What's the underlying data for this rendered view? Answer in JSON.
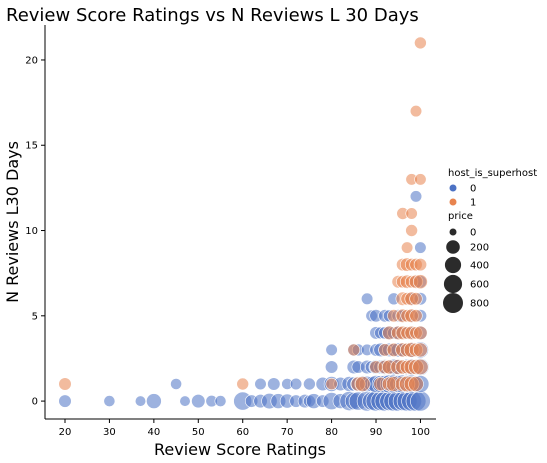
{
  "chart_data": {
    "type": "scatter",
    "title": "Review Score Ratings vs N Reviews L 30 Days",
    "xlabel": "Review Score Ratings",
    "ylabel": "N Reviews L30 Days",
    "xlim": [
      15.5,
      103.5
    ],
    "ylim": [
      -1.05,
      22.05
    ],
    "xticks": [
      20,
      30,
      40,
      50,
      60,
      70,
      80,
      90,
      100
    ],
    "yticks": [
      0,
      5,
      10,
      15,
      20
    ],
    "grid": false,
    "legend": {
      "placement": "right",
      "hue_title": "host_is_superhost",
      "hue_entries": [
        {
          "label": "0",
          "color": "#4c72c4"
        },
        {
          "label": "1",
          "color": "#e8844f"
        }
      ],
      "size_title": "price",
      "size_entries": [
        {
          "label": "0",
          "price": 0
        },
        {
          "label": "200",
          "price": 200
        },
        {
          "label": "400",
          "price": 400
        },
        {
          "label": "600",
          "price": 600
        },
        {
          "label": "800",
          "price": 800
        }
      ]
    },
    "series": [
      {
        "name": "0",
        "color": "#4c72c4",
        "points": [
          [
            20,
            0,
            150
          ],
          [
            30,
            0,
            80
          ],
          [
            37,
            0,
            60
          ],
          [
            40,
            0,
            300
          ],
          [
            45,
            1,
            80
          ],
          [
            47,
            0,
            60
          ],
          [
            50,
            0,
            200
          ],
          [
            53,
            0,
            100
          ],
          [
            55,
            0,
            80
          ],
          [
            60,
            0,
            600
          ],
          [
            62,
            0,
            150
          ],
          [
            64,
            0,
            200
          ],
          [
            66,
            0,
            350
          ],
          [
            68,
            0,
            300
          ],
          [
            70,
            0,
            250
          ],
          [
            72,
            0,
            150
          ],
          [
            74,
            0,
            200
          ],
          [
            75,
            0,
            120
          ],
          [
            76,
            0,
            300
          ],
          [
            78,
            0,
            150
          ],
          [
            80,
            0,
            500
          ],
          [
            82,
            0,
            300
          ],
          [
            84,
            0,
            700
          ],
          [
            85,
            0,
            500
          ],
          [
            86,
            0,
            600
          ],
          [
            88,
            0,
            800
          ],
          [
            89,
            0,
            600
          ],
          [
            90,
            0,
            800
          ],
          [
            91,
            0,
            700
          ],
          [
            92,
            0,
            800
          ],
          [
            93,
            0,
            700
          ],
          [
            94,
            0,
            800
          ],
          [
            95,
            0,
            800
          ],
          [
            96,
            0,
            700
          ],
          [
            97,
            0,
            800
          ],
          [
            98,
            0,
            800
          ],
          [
            99,
            0,
            800
          ],
          [
            100,
            0,
            800
          ],
          [
            64,
            1,
            100
          ],
          [
            67,
            1,
            150
          ],
          [
            70,
            1,
            80
          ],
          [
            72,
            1,
            100
          ],
          [
            75,
            1,
            120
          ],
          [
            78,
            1,
            200
          ],
          [
            80,
            1,
            300
          ],
          [
            82,
            1,
            200
          ],
          [
            84,
            1,
            300
          ],
          [
            85,
            1,
            250
          ],
          [
            86,
            1,
            300
          ],
          [
            87,
            1,
            400
          ],
          [
            88,
            1,
            350
          ],
          [
            89,
            1,
            300
          ],
          [
            90,
            1,
            500
          ],
          [
            91,
            1,
            450
          ],
          [
            92,
            1,
            500
          ],
          [
            93,
            1,
            600
          ],
          [
            94,
            1,
            600
          ],
          [
            95,
            1,
            500
          ],
          [
            96,
            1,
            600
          ],
          [
            97,
            1,
            500
          ],
          [
            98,
            1,
            600
          ],
          [
            99,
            1,
            400
          ],
          [
            100,
            1,
            500
          ],
          [
            80,
            2,
            150
          ],
          [
            85,
            2,
            200
          ],
          [
            86,
            2,
            150
          ],
          [
            88,
            2,
            200
          ],
          [
            89,
            2,
            150
          ],
          [
            90,
            2,
            250
          ],
          [
            91,
            2,
            200
          ],
          [
            92,
            2,
            300
          ],
          [
            93,
            2,
            250
          ],
          [
            94,
            2,
            350
          ],
          [
            95,
            2,
            300
          ],
          [
            96,
            2,
            250
          ],
          [
            97,
            2,
            350
          ],
          [
            98,
            2,
            400
          ],
          [
            99,
            2,
            300
          ],
          [
            100,
            2,
            500
          ],
          [
            80,
            3,
            100
          ],
          [
            85,
            3,
            150
          ],
          [
            86,
            3,
            120
          ],
          [
            88,
            3,
            100
          ],
          [
            90,
            3,
            150
          ],
          [
            91,
            3,
            200
          ],
          [
            92,
            3,
            150
          ],
          [
            93,
            3,
            200
          ],
          [
            94,
            3,
            150
          ],
          [
            95,
            3,
            250
          ],
          [
            96,
            3,
            200
          ],
          [
            97,
            3,
            200
          ],
          [
            98,
            3,
            300
          ],
          [
            100,
            3,
            400
          ],
          [
            90,
            4,
            150
          ],
          [
            91,
            4,
            120
          ],
          [
            92,
            4,
            150
          ],
          [
            93,
            4,
            200
          ],
          [
            94,
            4,
            150
          ],
          [
            95,
            4,
            200
          ],
          [
            96,
            4,
            150
          ],
          [
            97,
            4,
            200
          ],
          [
            98,
            4,
            150
          ],
          [
            100,
            4,
            200
          ],
          [
            89,
            5,
            100
          ],
          [
            90,
            5,
            150
          ],
          [
            92,
            5,
            150
          ],
          [
            93,
            5,
            120
          ],
          [
            95,
            5,
            150
          ],
          [
            96,
            5,
            120
          ],
          [
            98,
            5,
            150
          ],
          [
            100,
            5,
            150
          ],
          [
            88,
            6,
            100
          ],
          [
            94,
            6,
            120
          ],
          [
            98,
            6,
            150
          ],
          [
            100,
            6,
            150
          ],
          [
            99,
            7,
            120
          ],
          [
            100,
            7,
            150
          ],
          [
            100,
            9,
            100
          ],
          [
            99,
            12,
            100
          ]
        ]
      },
      {
        "name": "1",
        "color": "#e8844f",
        "points": [
          [
            20,
            1,
            150
          ],
          [
            60,
            1,
            120
          ],
          [
            80,
            1,
            100
          ],
          [
            86,
            1,
            250
          ],
          [
            87,
            1,
            300
          ],
          [
            91,
            1,
            200
          ],
          [
            93,
            1,
            250
          ],
          [
            94,
            1,
            300
          ],
          [
            96,
            1,
            300
          ],
          [
            97,
            1,
            350
          ],
          [
            98,
            1,
            300
          ],
          [
            99,
            1,
            300
          ],
          [
            90,
            2,
            150
          ],
          [
            92,
            2,
            200
          ],
          [
            93,
            2,
            250
          ],
          [
            95,
            2,
            300
          ],
          [
            96,
            2,
            250
          ],
          [
            97,
            2,
            200
          ],
          [
            98,
            2,
            300
          ],
          [
            99,
            2,
            300
          ],
          [
            100,
            2,
            350
          ],
          [
            85,
            3,
            120
          ],
          [
            92,
            3,
            150
          ],
          [
            94,
            3,
            200
          ],
          [
            96,
            3,
            250
          ],
          [
            97,
            3,
            200
          ],
          [
            98,
            3,
            300
          ],
          [
            99,
            3,
            200
          ],
          [
            100,
            3,
            250
          ],
          [
            93,
            4,
            200
          ],
          [
            95,
            4,
            200
          ],
          [
            96,
            4,
            200
          ],
          [
            97,
            4,
            150
          ],
          [
            98,
            4,
            200
          ],
          [
            99,
            4,
            150
          ],
          [
            100,
            4,
            200
          ],
          [
            94,
            5,
            150
          ],
          [
            96,
            5,
            200
          ],
          [
            97,
            5,
            150
          ],
          [
            98,
            5,
            200
          ],
          [
            99,
            5,
            150
          ],
          [
            96,
            6,
            200
          ],
          [
            97,
            6,
            150
          ],
          [
            98,
            6,
            200
          ],
          [
            99,
            6,
            150
          ],
          [
            95,
            7,
            150
          ],
          [
            96,
            7,
            150
          ],
          [
            97,
            7,
            200
          ],
          [
            98,
            7,
            150
          ],
          [
            99,
            7,
            200
          ],
          [
            100,
            7,
            250
          ],
          [
            96,
            8,
            150
          ],
          [
            97,
            8,
            200
          ],
          [
            98,
            8,
            150
          ],
          [
            99,
            8,
            150
          ],
          [
            100,
            8,
            150
          ],
          [
            97,
            9,
            100
          ],
          [
            98,
            10,
            120
          ],
          [
            96,
            11,
            120
          ],
          [
            98,
            11,
            100
          ],
          [
            98,
            13,
            100
          ],
          [
            100,
            13,
            100
          ],
          [
            99,
            17,
            100
          ],
          [
            100,
            21,
            120
          ]
        ]
      }
    ]
  }
}
